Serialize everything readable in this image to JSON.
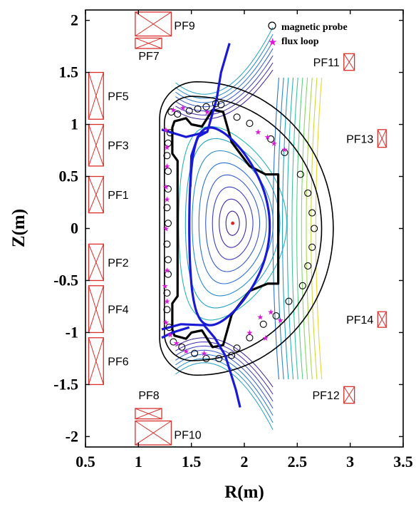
{
  "figure": {
    "x_axis_label": "R(m)",
    "y_axis_label": "Z(m)",
    "x_ticks": [
      "0.5",
      "1",
      "1.5",
      "2",
      "2.5",
      "3",
      "3.5"
    ],
    "y_ticks": [
      "2",
      "1.5",
      "1",
      "0.5",
      "0",
      "-0.5",
      "-1",
      "-1.5",
      "-2"
    ],
    "x_range": [
      0.5,
      3.5
    ],
    "y_range": [
      -2.1,
      2.1
    ],
    "colors": {
      "coil": "#d9302c",
      "separatrix": "#1a1ad6",
      "wall": "#000000",
      "flux_loop": "#d61ad6",
      "axis_dot": "#e02020"
    }
  },
  "legend": {
    "position": "top-right",
    "items": [
      {
        "label": "magnetic probe",
        "marker": "circle"
      },
      {
        "label": "flux loop",
        "marker": "star"
      }
    ]
  },
  "coils": [
    {
      "name": "PF1",
      "r": [
        0.53,
        0.67
      ],
      "z": [
        0.15,
        0.5
      ]
    },
    {
      "name": "PF2",
      "r": [
        0.53,
        0.67
      ],
      "z": [
        -0.5,
        -0.15
      ]
    },
    {
      "name": "PF3",
      "r": [
        0.53,
        0.67
      ],
      "z": [
        0.6,
        1.0
      ]
    },
    {
      "name": "PF4",
      "r": [
        0.53,
        0.67
      ],
      "z": [
        -1.0,
        -0.55
      ]
    },
    {
      "name": "PF5",
      "r": [
        0.53,
        0.67
      ],
      "z": [
        1.05,
        1.5
      ]
    },
    {
      "name": "PF6",
      "r": [
        0.53,
        0.67
      ],
      "z": [
        -1.5,
        -1.05
      ]
    },
    {
      "name": "PF7",
      "r": [
        0.97,
        1.22
      ],
      "z": [
        1.73,
        1.83
      ]
    },
    {
      "name": "PF8",
      "r": [
        0.97,
        1.22
      ],
      "z": [
        -1.83,
        -1.73
      ]
    },
    {
      "name": "PF9",
      "r": [
        0.97,
        1.31
      ],
      "z": [
        1.85,
        2.08
      ]
    },
    {
      "name": "PF10",
      "r": [
        0.97,
        1.31
      ],
      "z": [
        -2.08,
        -1.85
      ]
    },
    {
      "name": "PF11",
      "r": [
        2.94,
        3.04
      ],
      "z": [
        1.52,
        1.68
      ]
    },
    {
      "name": "PF12",
      "r": [
        2.94,
        3.04
      ],
      "z": [
        -1.68,
        -1.52
      ]
    },
    {
      "name": "PF13",
      "r": [
        3.26,
        3.34
      ],
      "z": [
        0.78,
        0.95
      ]
    },
    {
      "name": "PF14",
      "r": [
        3.26,
        3.34
      ],
      "z": [
        -0.95,
        -0.8
      ]
    }
  ],
  "magnetic_axis": [
    1.89,
    0.05
  ]
}
